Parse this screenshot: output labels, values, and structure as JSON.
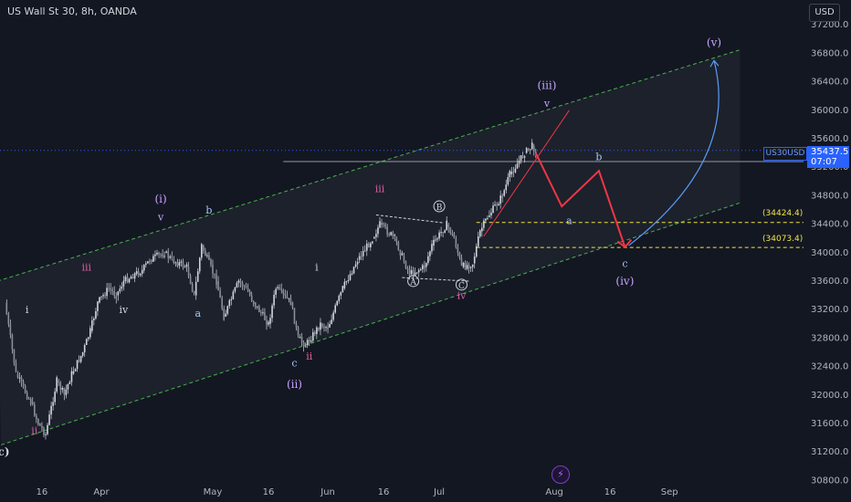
{
  "header": {
    "title": "US Wall St 30, 8h, OANDA",
    "currency": "USD"
  },
  "price_badge": {
    "symbol": "US30USD",
    "price": "35437.5",
    "countdown": "07:07"
  },
  "levels": [
    {
      "label": "(34424.4)",
      "value": 34424.4
    },
    {
      "label": "(34073.4)",
      "value": 34073.4
    }
  ],
  "colors": {
    "background": "#131722",
    "channel_line": "#4caf50",
    "level_line": "#f0e442",
    "projection_red": "#f23645",
    "projection_blue": "#5b9cf6",
    "wave_labels_purple": "#c9a3ff",
    "wave_labels_blue": "#a9c7ff",
    "candle": "#d1d4dc"
  },
  "logo_icon": "lightning-icon",
  "chart_data": {
    "type": "line",
    "title": "US Wall St 30, 8h, OANDA",
    "xlabel": "",
    "ylabel": "",
    "x_ticks": [
      "16",
      "Apr",
      "May",
      "16",
      "Jun",
      "16",
      "Jul",
      "Aug",
      "16",
      "Sep"
    ],
    "y_ticks": [
      30800,
      31200,
      31600,
      32000,
      32400,
      32800,
      33200,
      33600,
      34000,
      34400,
      34800,
      35200,
      35600,
      36000,
      36400,
      36800,
      37200
    ],
    "ylim": [
      30600,
      37400
    ],
    "grid": false,
    "legend": "none",
    "series": [
      {
        "values": [
          {
            "d": "2023-03-06",
            "v": 33300
          },
          {
            "d": "2023-03-09",
            "v": 32300
          },
          {
            "d": "2023-03-13",
            "v": 31900
          },
          {
            "d": "2023-03-15",
            "v": 31600
          },
          {
            "d": "2023-03-17",
            "v": 31450
          },
          {
            "d": "2023-03-20",
            "v": 32200
          },
          {
            "d": "2023-03-22",
            "v": 32000
          },
          {
            "d": "2023-03-24",
            "v": 32300
          },
          {
            "d": "2023-03-27",
            "v": 32600
          },
          {
            "d": "2023-03-29",
            "v": 32900
          },
          {
            "d": "2023-03-31",
            "v": 33300
          },
          {
            "d": "2023-04-03",
            "v": 33500
          },
          {
            "d": "2023-04-05",
            "v": 33400
          },
          {
            "d": "2023-04-07",
            "v": 33600
          },
          {
            "d": "2023-04-10",
            "v": 33700
          },
          {
            "d": "2023-04-12",
            "v": 33750
          },
          {
            "d": "2023-04-14",
            "v": 33900
          },
          {
            "d": "2023-04-18",
            "v": 34000
          },
          {
            "d": "2023-04-20",
            "v": 33900
          },
          {
            "d": "2023-04-24",
            "v": 33800
          },
          {
            "d": "2023-04-26",
            "v": 33400
          },
          {
            "d": "2023-04-28",
            "v": 34100
          },
          {
            "d": "2023-05-02",
            "v": 33600
          },
          {
            "d": "2023-05-04",
            "v": 33100
          },
          {
            "d": "2023-05-08",
            "v": 33600
          },
          {
            "d": "2023-05-10",
            "v": 33500
          },
          {
            "d": "2023-05-12",
            "v": 33300
          },
          {
            "d": "2023-05-16",
            "v": 33000
          },
          {
            "d": "2023-05-18",
            "v": 33500
          },
          {
            "d": "2023-05-22",
            "v": 33300
          },
          {
            "d": "2023-05-24",
            "v": 32800
          },
          {
            "d": "2023-05-26",
            "v": 32700
          },
          {
            "d": "2023-05-30",
            "v": 33000
          },
          {
            "d": "2023-06-01",
            "v": 32950
          },
          {
            "d": "2023-06-05",
            "v": 33500
          },
          {
            "d": "2023-06-07",
            "v": 33700
          },
          {
            "d": "2023-06-09",
            "v": 33900
          },
          {
            "d": "2023-06-13",
            "v": 34200
          },
          {
            "d": "2023-06-15",
            "v": 34400
          },
          {
            "d": "2023-06-19",
            "v": 34200
          },
          {
            "d": "2023-06-21",
            "v": 33950
          },
          {
            "d": "2023-06-23",
            "v": 33700
          },
          {
            "d": "2023-06-27",
            "v": 33800
          },
          {
            "d": "2023-06-29",
            "v": 34100
          },
          {
            "d": "2023-07-03",
            "v": 34400
          },
          {
            "d": "2023-07-05",
            "v": 34200
          },
          {
            "d": "2023-07-07",
            "v": 33800
          },
          {
            "d": "2023-07-10",
            "v": 33850
          },
          {
            "d": "2023-07-12",
            "v": 34300
          },
          {
            "d": "2023-07-14",
            "v": 34500
          },
          {
            "d": "2023-07-18",
            "v": 34800
          },
          {
            "d": "2023-07-20",
            "v": 35100
          },
          {
            "d": "2023-07-24",
            "v": 35400
          },
          {
            "d": "2023-07-26",
            "v": 35500
          },
          {
            "d": "2023-07-27",
            "v": 35437.5
          }
        ]
      }
    ],
    "channel": {
      "upper": [
        {
          "d": "2023-03-04",
          "v": 33600
        },
        {
          "d": "2023-09-20",
          "v": 36850
        }
      ],
      "lower": [
        {
          "d": "2023-03-05",
          "v": 31300
        },
        {
          "d": "2023-09-20",
          "v": 34700
        }
      ]
    },
    "horizontal_lines": [
      {
        "v": 35280,
        "from": "2023-05-20",
        "color": "#9598a1"
      },
      {
        "v": 34424.4,
        "from": "2023-07-11",
        "color": "#f0e442"
      },
      {
        "v": 34073.4,
        "from": "2023-07-11",
        "color": "#f0e442"
      }
    ],
    "projection_red": [
      {
        "d": "2023-07-27",
        "v": 35400
      },
      {
        "d": "2023-08-03",
        "v": 34650
      },
      {
        "d": "2023-08-13",
        "v": 35150
      },
      {
        "d": "2023-08-20",
        "v": 34080
      }
    ],
    "red_trendline": [
      {
        "d": "2023-07-13",
        "v": 34230
      },
      {
        "d": "2023-08-05",
        "v": 36000
      }
    ],
    "projection_blue": [
      {
        "d": "2023-08-21",
        "v": 34100
      },
      {
        "d": "2023-09-10",
        "v": 35300
      },
      {
        "d": "2023-09-13",
        "v": 36700
      }
    ],
    "annotations": [
      {
        "text": "(c)",
        "d": "2023-03-05",
        "v": 31150,
        "color": "#d1d4dc",
        "weight": "bold"
      },
      {
        "text": "ii",
        "d": "2023-03-14",
        "v": 31450,
        "color": "#e05fa0"
      },
      {
        "text": "i",
        "d": "2023-03-12",
        "v": 33150,
        "color": "#d1d4dc"
      },
      {
        "text": "iii",
        "d": "2023-03-28",
        "v": 33750,
        "color": "#e05fa0"
      },
      {
        "text": "iv",
        "d": "2023-04-07",
        "v": 33150,
        "color": "#d1d4dc"
      },
      {
        "text": "(i)",
        "d": "2023-04-17",
        "v": 34700,
        "color": "#c9a3ff"
      },
      {
        "text": "v",
        "d": "2023-04-17",
        "v": 34450,
        "color": "#c9a3ff"
      },
      {
        "text": "a",
        "d": "2023-04-27",
        "v": 33100,
        "color": "#a9c7ff"
      },
      {
        "text": "b",
        "d": "2023-04-30",
        "v": 34550,
        "color": "#a9c7ff"
      },
      {
        "text": "c",
        "d": "2023-05-23",
        "v": 32400,
        "color": "#a9c7ff"
      },
      {
        "text": "(ii)",
        "d": "2023-05-23",
        "v": 32100,
        "color": "#c9a3ff"
      },
      {
        "text": "i",
        "d": "2023-05-29",
        "v": 33750,
        "color": "#d1d4dc"
      },
      {
        "text": "ii",
        "d": "2023-05-27",
        "v": 32500,
        "color": "#e05fa0"
      },
      {
        "text": "iii",
        "d": "2023-06-15",
        "v": 34850,
        "color": "#e05fa0"
      },
      {
        "text": "iv",
        "d": "2023-07-07",
        "v": 33350,
        "color": "#e05fa0"
      },
      {
        "text": "(iii)",
        "d": "2023-07-30",
        "v": 36300,
        "color": "#c9a3ff"
      },
      {
        "text": "v",
        "d": "2023-07-30",
        "v": 36050,
        "color": "#c9a3ff"
      },
      {
        "text": "b",
        "d": "2023-08-13",
        "v": 35300,
        "color": "#a9c7ff"
      },
      {
        "text": "a",
        "d": "2023-08-05",
        "v": 34400,
        "color": "#a9c7ff"
      },
      {
        "text": "c",
        "d": "2023-08-20",
        "v": 33800,
        "color": "#a9c7ff"
      },
      {
        "text": "(iv)",
        "d": "2023-08-20",
        "v": 33550,
        "color": "#c9a3ff"
      },
      {
        "text": "(v)",
        "d": "2023-09-13",
        "v": 36900,
        "color": "#c9a3ff"
      }
    ],
    "circled_labels": [
      {
        "text": "A",
        "d": "2023-06-24",
        "v": 33550
      },
      {
        "text": "B",
        "d": "2023-07-01",
        "v": 34600
      },
      {
        "text": "C",
        "d": "2023-07-07",
        "v": 33500
      }
    ]
  }
}
